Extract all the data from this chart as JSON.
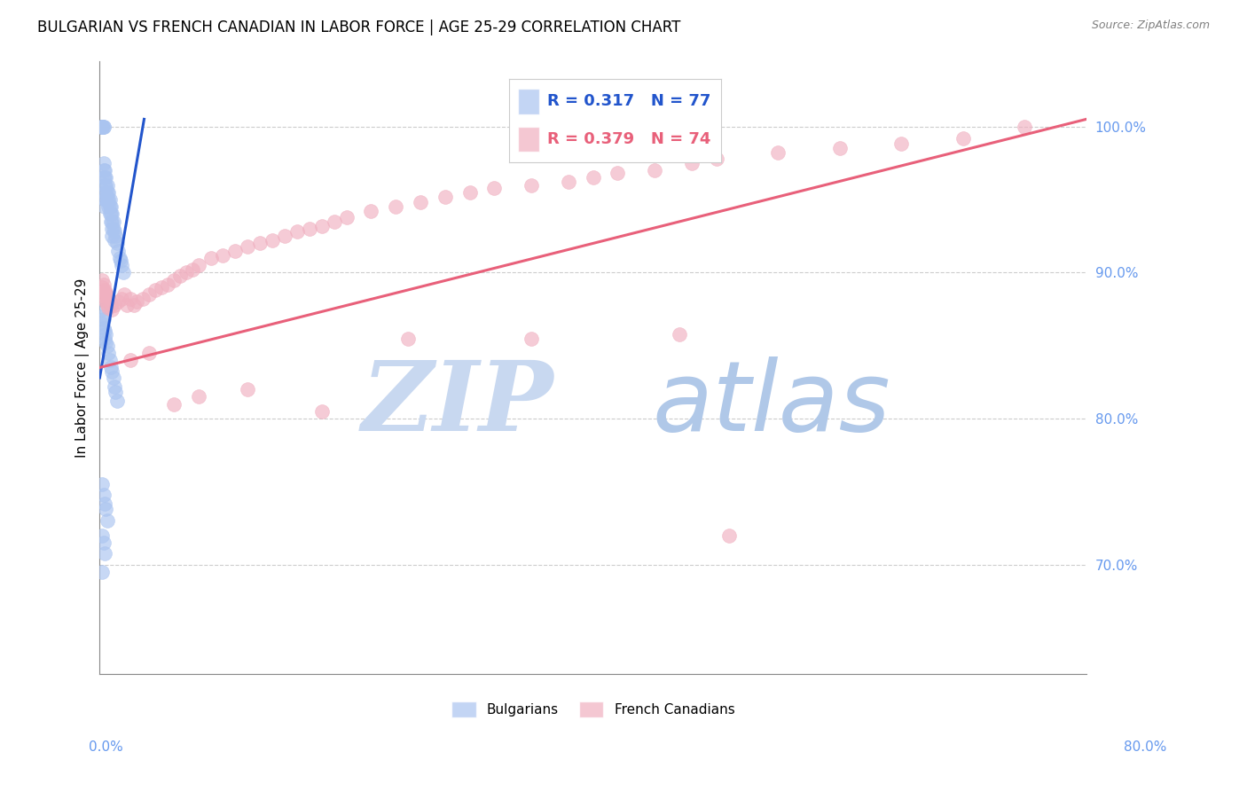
{
  "title": "BULGARIAN VS FRENCH CANADIAN IN LABOR FORCE | AGE 25-29 CORRELATION CHART",
  "source": "Source: ZipAtlas.com",
  "ylabel": "In Labor Force | Age 25-29",
  "right_yticks": [
    0.7,
    0.8,
    0.9,
    1.0
  ],
  "right_yticklabels": [
    "70.0%",
    "80.0%",
    "90.0%",
    "100.0%"
  ],
  "xlim": [
    0.0,
    0.8
  ],
  "ylim": [
    0.625,
    1.045
  ],
  "legend_blue_r": "0.317",
  "legend_blue_n": "77",
  "legend_pink_r": "0.379",
  "legend_pink_n": "74",
  "legend_label_blue": "Bulgarians",
  "legend_label_pink": "French Canadians",
  "blue_color": "#aac4f0",
  "pink_color": "#f0b0c0",
  "blue_line_color": "#2255cc",
  "pink_line_color": "#e8607a",
  "watermark_zip_color": "#c8d8f0",
  "watermark_atlas_color": "#b0c8e8",
  "blue_trend_x0": 0.0,
  "blue_trend_y0": 0.828,
  "blue_trend_x1": 0.036,
  "blue_trend_y1": 1.005,
  "pink_trend_x0": 0.0,
  "pink_trend_y0": 0.835,
  "pink_trend_x1": 0.8,
  "pink_trend_y1": 1.005,
  "grid_color": "#cccccc",
  "axis_tick_color": "#6699ee",
  "blue_x": [
    0.002,
    0.002,
    0.002,
    0.002,
    0.002,
    0.002,
    0.002,
    0.002,
    0.003,
    0.003,
    0.003,
    0.003,
    0.003,
    0.004,
    0.004,
    0.004,
    0.004,
    0.004,
    0.004,
    0.005,
    0.005,
    0.005,
    0.005,
    0.006,
    0.006,
    0.006,
    0.007,
    0.007,
    0.007,
    0.008,
    0.008,
    0.008,
    0.009,
    0.009,
    0.009,
    0.01,
    0.01,
    0.01,
    0.01,
    0.011,
    0.011,
    0.012,
    0.012,
    0.013,
    0.014,
    0.015,
    0.016,
    0.017,
    0.018,
    0.019,
    0.002,
    0.002,
    0.002,
    0.003,
    0.003,
    0.004,
    0.004,
    0.005,
    0.005,
    0.006,
    0.007,
    0.008,
    0.009,
    0.01,
    0.011,
    0.012,
    0.013,
    0.014,
    0.002,
    0.003,
    0.004,
    0.005,
    0.006,
    0.002,
    0.003,
    0.004,
    0.002
  ],
  "blue_y": [
    1.0,
    1.0,
    1.0,
    1.0,
    1.0,
    1.0,
    1.0,
    1.0,
    1.0,
    1.0,
    0.975,
    0.97,
    0.965,
    0.97,
    0.965,
    0.96,
    0.955,
    0.95,
    0.945,
    0.965,
    0.96,
    0.955,
    0.95,
    0.96,
    0.955,
    0.95,
    0.955,
    0.95,
    0.945,
    0.95,
    0.945,
    0.94,
    0.945,
    0.94,
    0.935,
    0.94,
    0.935,
    0.93,
    0.925,
    0.935,
    0.93,
    0.928,
    0.922,
    0.925,
    0.92,
    0.915,
    0.91,
    0.908,
    0.905,
    0.9,
    0.875,
    0.87,
    0.865,
    0.868,
    0.862,
    0.86,
    0.855,
    0.858,
    0.852,
    0.85,
    0.845,
    0.84,
    0.835,
    0.832,
    0.828,
    0.822,
    0.818,
    0.812,
    0.755,
    0.748,
    0.742,
    0.738,
    0.73,
    0.72,
    0.715,
    0.708,
    0.695
  ],
  "pink_x": [
    0.002,
    0.002,
    0.002,
    0.003,
    0.003,
    0.004,
    0.004,
    0.005,
    0.005,
    0.006,
    0.006,
    0.007,
    0.007,
    0.008,
    0.009,
    0.01,
    0.012,
    0.015,
    0.018,
    0.02,
    0.022,
    0.025,
    0.028,
    0.03,
    0.035,
    0.04,
    0.045,
    0.05,
    0.055,
    0.06,
    0.065,
    0.07,
    0.075,
    0.08,
    0.09,
    0.1,
    0.11,
    0.12,
    0.13,
    0.14,
    0.15,
    0.16,
    0.17,
    0.18,
    0.19,
    0.2,
    0.22,
    0.24,
    0.26,
    0.28,
    0.3,
    0.32,
    0.35,
    0.38,
    0.4,
    0.42,
    0.45,
    0.48,
    0.5,
    0.55,
    0.6,
    0.65,
    0.7,
    0.75,
    0.47,
    0.35,
    0.25,
    0.18,
    0.12,
    0.08,
    0.06,
    0.04,
    0.025,
    0.51
  ],
  "pink_y": [
    0.895,
    0.89,
    0.885,
    0.892,
    0.887,
    0.888,
    0.882,
    0.886,
    0.88,
    0.884,
    0.878,
    0.882,
    0.876,
    0.88,
    0.878,
    0.875,
    0.878,
    0.88,
    0.882,
    0.885,
    0.878,
    0.882,
    0.878,
    0.88,
    0.882,
    0.885,
    0.888,
    0.89,
    0.892,
    0.895,
    0.898,
    0.9,
    0.902,
    0.905,
    0.91,
    0.912,
    0.915,
    0.918,
    0.92,
    0.922,
    0.925,
    0.928,
    0.93,
    0.932,
    0.935,
    0.938,
    0.942,
    0.945,
    0.948,
    0.952,
    0.955,
    0.958,
    0.96,
    0.962,
    0.965,
    0.968,
    0.97,
    0.975,
    0.978,
    0.982,
    0.985,
    0.988,
    0.992,
    1.0,
    0.858,
    0.855,
    0.855,
    0.805,
    0.82,
    0.815,
    0.81,
    0.845,
    0.84,
    0.72
  ]
}
